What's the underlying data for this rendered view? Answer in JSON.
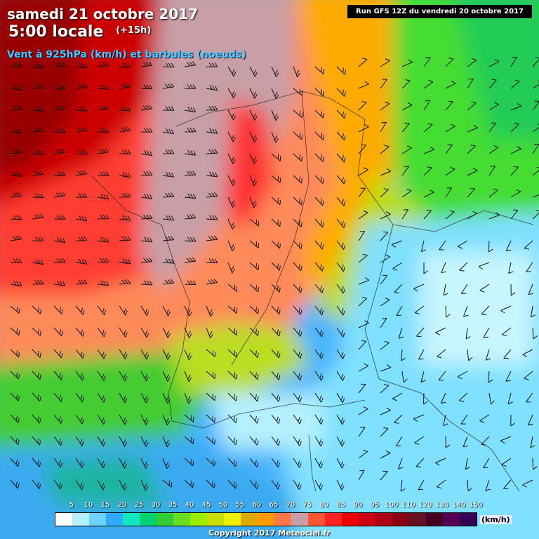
{
  "title": {
    "date": "samedi 21 octobre 2017",
    "time": "5:00 locale",
    "lead": "(+15h)",
    "subtitle": "Vent à 925hPa (km/h) et barbules (noeuds)"
  },
  "run_info": "Run GFS 12Z du vendredi 20 octobre 2017",
  "legend": {
    "unit": "(km/h)",
    "labels": [
      "5",
      "10",
      "15",
      "20",
      "25",
      "30",
      "35",
      "40",
      "45",
      "50",
      "55",
      "60",
      "65",
      "70",
      "75",
      "80",
      "85",
      "90",
      "95",
      "100",
      "110",
      "120",
      "130",
      "140",
      "150"
    ],
    "colors": [
      "#ffffff",
      "#b4f0ff",
      "#6cd2ff",
      "#2eaaff",
      "#11e8c0",
      "#00d070",
      "#33cc33",
      "#66dd22",
      "#99ee00",
      "#c8dd00",
      "#eeee00",
      "#ddaa00",
      "#ff9900",
      "#ff7744",
      "#c89fa6",
      "#ff5533",
      "#ff2222",
      "#ee0000",
      "#cc0011",
      "#aa0011",
      "#880011",
      "#661122",
      "#440022",
      "#550055",
      "#330055"
    ]
  },
  "copyright": "Copyright 2017 Meteociel.fr",
  "map_icons": {
    "wind": "wind-barb-icon",
    "calm": "wind-arrow-icon"
  }
}
